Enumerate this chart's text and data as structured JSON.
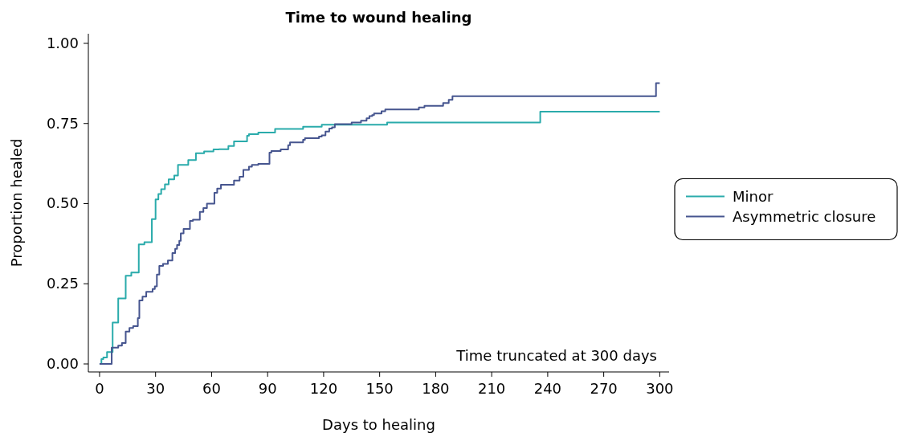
{
  "chart_data": {
    "type": "step",
    "title": "Time to wound healing",
    "xlabel": "Days to healing",
    "ylabel": "Proportion healed",
    "annotations": [
      "Time truncated at 300 days"
    ],
    "xlim": [
      -6,
      305
    ],
    "xticks": [
      0,
      30,
      60,
      90,
      120,
      150,
      180,
      210,
      240,
      270,
      300
    ],
    "ylim": [
      -0.025,
      1.03
    ],
    "yticks": [
      {
        "value": 0,
        "label": "0.00"
      },
      {
        "value": 0.25,
        "label": "0.25"
      },
      {
        "value": 0.5,
        "label": "0.50"
      },
      {
        "value": 0.75,
        "label": "0.75"
      },
      {
        "value": 1,
        "label": "1.00"
      }
    ],
    "legend": "right",
    "grid": false,
    "series": [
      {
        "name": "Minor",
        "color": "#2aabab",
        "x": [
          0,
          1,
          2,
          4,
          7,
          10,
          14,
          17,
          21,
          24,
          28,
          30,
          31.5,
          33,
          35,
          37,
          40,
          42,
          47.5,
          51.6,
          56,
          61,
          64,
          69,
          72,
          79,
          80,
          85,
          94,
          109,
          119,
          154,
          236,
          300
        ],
        "values": [
          0,
          0.015,
          0.02,
          0.037,
          0.129,
          0.204,
          0.275,
          0.285,
          0.373,
          0.38,
          0.452,
          0.513,
          0.53,
          0.545,
          0.56,
          0.576,
          0.588,
          0.621,
          0.636,
          0.657,
          0.663,
          0.669,
          0.67,
          0.68,
          0.694,
          0.712,
          0.717,
          0.722,
          0.733,
          0.74,
          0.746,
          0.753,
          0.787,
          0.787
        ]
      },
      {
        "name": "Asymmetric closure",
        "color": "#46558f",
        "x": [
          0,
          6.5,
          10,
          12,
          14,
          16,
          18,
          20.5,
          21.3,
          23,
          25,
          28.4,
          29.6,
          30.7,
          32,
          34,
          36.6,
          39,
          40.5,
          41.5,
          42.7,
          43.5,
          45,
          48.4,
          50,
          53.7,
          55.6,
          57.5,
          61.5,
          63,
          65,
          72,
          75,
          77,
          80,
          81.6,
          85,
          91,
          92,
          97,
          101,
          102,
          109,
          110,
          117.5,
          119,
          121,
          123,
          124.5,
          126,
          135,
          140,
          143,
          144.5,
          146,
          147,
          151,
          153,
          171,
          174,
          184,
          187,
          189,
          298,
          300
        ],
        "values": [
          0,
          0.051,
          0.057,
          0.065,
          0.101,
          0.112,
          0.118,
          0.143,
          0.198,
          0.21,
          0.225,
          0.234,
          0.242,
          0.279,
          0.306,
          0.312,
          0.323,
          0.346,
          0.359,
          0.371,
          0.384,
          0.407,
          0.421,
          0.446,
          0.45,
          0.474,
          0.486,
          0.5,
          0.534,
          0.547,
          0.559,
          0.572,
          0.584,
          0.605,
          0.615,
          0.621,
          0.624,
          0.659,
          0.664,
          0.669,
          0.682,
          0.691,
          0.699,
          0.704,
          0.709,
          0.713,
          0.725,
          0.734,
          0.738,
          0.748,
          0.753,
          0.759,
          0.766,
          0.773,
          0.776,
          0.781,
          0.788,
          0.794,
          0.8,
          0.805,
          0.814,
          0.824,
          0.835,
          0.876,
          0.876
        ]
      }
    ]
  }
}
